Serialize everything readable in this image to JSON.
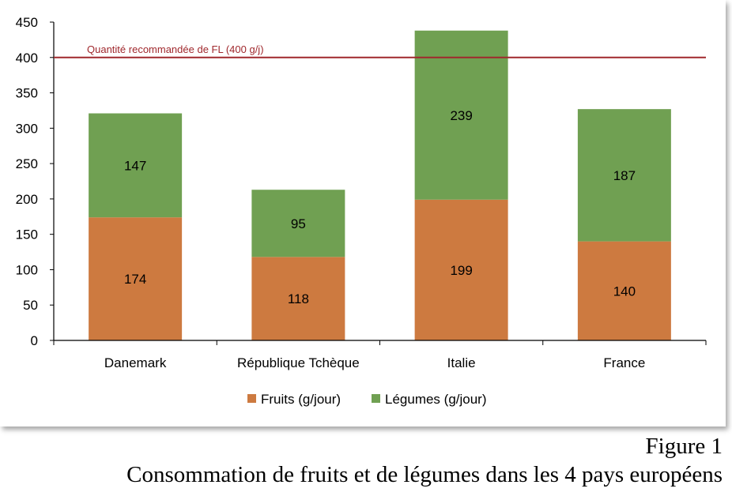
{
  "chart_data": {
    "type": "bar",
    "stacked": true,
    "categories": [
      "Danemark",
      "République Tchèque",
      "Italie",
      "France"
    ],
    "series": [
      {
        "name": "Fruits (g/jour)",
        "values": [
          174,
          118,
          199,
          140
        ],
        "color": "#cd7a40"
      },
      {
        "name": "Légumes (g/jour)",
        "values": [
          147,
          95,
          239,
          187
        ],
        "color": "#70a052"
      }
    ],
    "ylim": [
      0,
      450
    ],
    "yticks": [
      0,
      50,
      100,
      150,
      200,
      250,
      300,
      350,
      400,
      450
    ],
    "reference_line": {
      "value": 400,
      "label": "Quantité recommandée de FL (400 g/j)",
      "color": "#a0282d"
    },
    "legend_position": "bottom",
    "grid": false
  },
  "caption": {
    "figure_number": "Figure 1",
    "title": "Consommation de fruits et de légumes dans les 4 pays européens"
  }
}
